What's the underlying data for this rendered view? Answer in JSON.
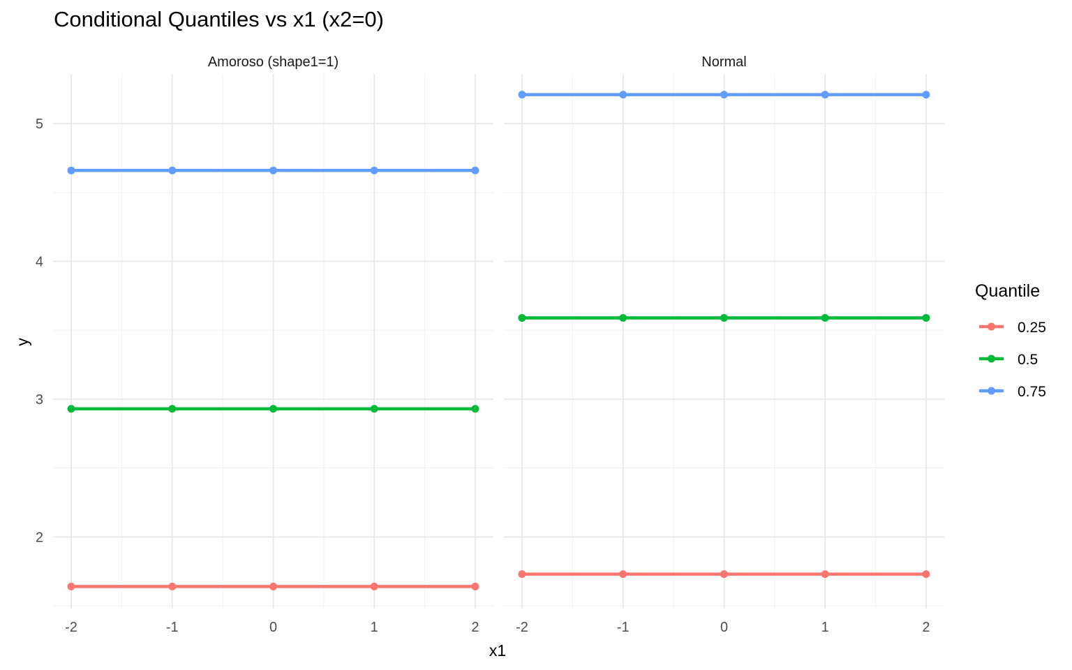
{
  "chart_data": {
    "type": "line",
    "title": "Conditional Quantiles vs x1 (x2=0)",
    "xlabel": "x1",
    "ylabel": "y",
    "legend": {
      "title": "Quantile",
      "placement": "right"
    },
    "grid": true,
    "x": [
      -2,
      -1,
      0,
      1,
      2
    ],
    "x_ticks": [
      "-2",
      "-1",
      "0",
      "1",
      "2"
    ],
    "xlim": [
      -2.18,
      2.18
    ],
    "ylim": [
      1.48,
      5.36
    ],
    "y_ticks": [
      2,
      3,
      4,
      5
    ],
    "y_tick_labels": [
      "2",
      "3",
      "4",
      "5"
    ],
    "facets": [
      {
        "label": "Amoroso (shape1=1)",
        "series": [
          {
            "name": "0.25",
            "color": "#F8766D",
            "values": [
              1.64,
              1.64,
              1.64,
              1.64,
              1.64
            ]
          },
          {
            "name": "0.5",
            "color": "#00BA38",
            "values": [
              2.93,
              2.93,
              2.93,
              2.93,
              2.93
            ]
          },
          {
            "name": "0.75",
            "color": "#619CFF",
            "values": [
              4.66,
              4.66,
              4.66,
              4.66,
              4.66
            ]
          }
        ]
      },
      {
        "label": "Normal",
        "series": [
          {
            "name": "0.25",
            "color": "#F8766D",
            "values": [
              1.73,
              1.73,
              1.73,
              1.73,
              1.73
            ]
          },
          {
            "name": "0.5",
            "color": "#00BA38",
            "values": [
              3.59,
              3.59,
              3.59,
              3.59,
              3.59
            ]
          },
          {
            "name": "0.75",
            "color": "#619CFF",
            "values": [
              5.21,
              5.21,
              5.21,
              5.21,
              5.21
            ]
          }
        ]
      }
    ]
  }
}
